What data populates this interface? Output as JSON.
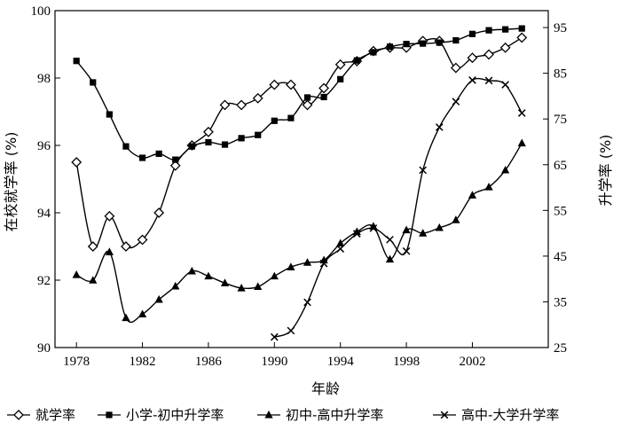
{
  "chart_data": {
    "type": "line",
    "xlabel": "年龄",
    "ylabel_left": "在校就学率 (%)",
    "ylabel_right": "升学率 (%)",
    "x_ticks": [
      1978,
      1982,
      1986,
      1990,
      1994,
      1998,
      2002
    ],
    "y_left_ticks": [
      90,
      92,
      94,
      96,
      98,
      100
    ],
    "y_right_ticks": [
      25,
      35,
      45,
      55,
      65,
      75,
      85,
      95
    ],
    "xlim": [
      1976.7,
      2006.6
    ],
    "ylim_left": [
      90,
      100
    ],
    "ylim_right": [
      25,
      98.7
    ],
    "grid": false,
    "legend_position": "bottom",
    "series": [
      {
        "name": "就学率",
        "marker": "diamond",
        "axis": "left",
        "x": [
          1978,
          1979,
          1980,
          1981,
          1982,
          1983,
          1984,
          1985,
          1986,
          1987,
          1988,
          1989,
          1990,
          1991,
          1992,
          1993,
          1994,
          1995,
          1996,
          1997,
          1998,
          1999,
          2000,
          2001,
          2002,
          2003,
          2004,
          2005
        ],
        "values": [
          95.5,
          93.0,
          93.9,
          93.0,
          93.2,
          94.0,
          95.4,
          96.0,
          96.4,
          97.2,
          97.2,
          97.4,
          97.8,
          97.8,
          97.2,
          97.7,
          98.4,
          98.5,
          98.8,
          98.9,
          98.9,
          99.1,
          99.1,
          98.3,
          98.6,
          98.7,
          98.9,
          99.2
        ]
      },
      {
        "name": "小学-初中升学率",
        "marker": "square",
        "axis": "right",
        "x": [
          1978,
          1979,
          1980,
          1981,
          1982,
          1983,
          1984,
          1985,
          1986,
          1987,
          1988,
          1989,
          1990,
          1991,
          1992,
          1993,
          1994,
          1995,
          1996,
          1997,
          1998,
          1999,
          2000,
          2001,
          2002,
          2003,
          2004,
          2005
        ],
        "values": [
          87.7,
          83.0,
          76.0,
          69.0,
          66.5,
          67.4,
          66.1,
          69.0,
          69.9,
          69.4,
          70.8,
          71.5,
          74.6,
          75.2,
          79.7,
          79.8,
          83.7,
          87.8,
          89.6,
          90.8,
          91.4,
          91.5,
          91.7,
          92.2,
          93.6,
          94.4,
          94.6,
          94.8
        ]
      },
      {
        "name": "初中-高中升学率",
        "marker": "triangle",
        "axis": "right",
        "x": [
          1978,
          1979,
          1980,
          1981,
          1982,
          1983,
          1984,
          1985,
          1986,
          1987,
          1988,
          1989,
          1990,
          1991,
          1992,
          1993,
          1994,
          1995,
          1996,
          1997,
          1998,
          1999,
          2000,
          2001,
          2002,
          2003,
          2004,
          2005
        ],
        "values": [
          40.9,
          39.7,
          45.9,
          31.5,
          32.3,
          35.5,
          38.4,
          41.7,
          40.6,
          39.1,
          38.0,
          38.3,
          40.6,
          42.6,
          43.6,
          44.1,
          47.8,
          50.3,
          51.5,
          44.3,
          50.7,
          50.0,
          51.2,
          52.9,
          58.3,
          60.1,
          63.8,
          69.7
        ]
      },
      {
        "name": "高中-大学升学率",
        "marker": "x",
        "axis": "right",
        "x": [
          1990,
          1991,
          1992,
          1993,
          1994,
          1995,
          1996,
          1997,
          1998,
          1999,
          2000,
          2001,
          2002,
          2003,
          2004,
          2005
        ],
        "values": [
          27.3,
          28.7,
          34.9,
          43.4,
          46.6,
          49.9,
          51.1,
          48.6,
          46.1,
          63.8,
          73.2,
          78.8,
          83.5,
          83.4,
          82.5,
          76.3
        ]
      }
    ]
  }
}
